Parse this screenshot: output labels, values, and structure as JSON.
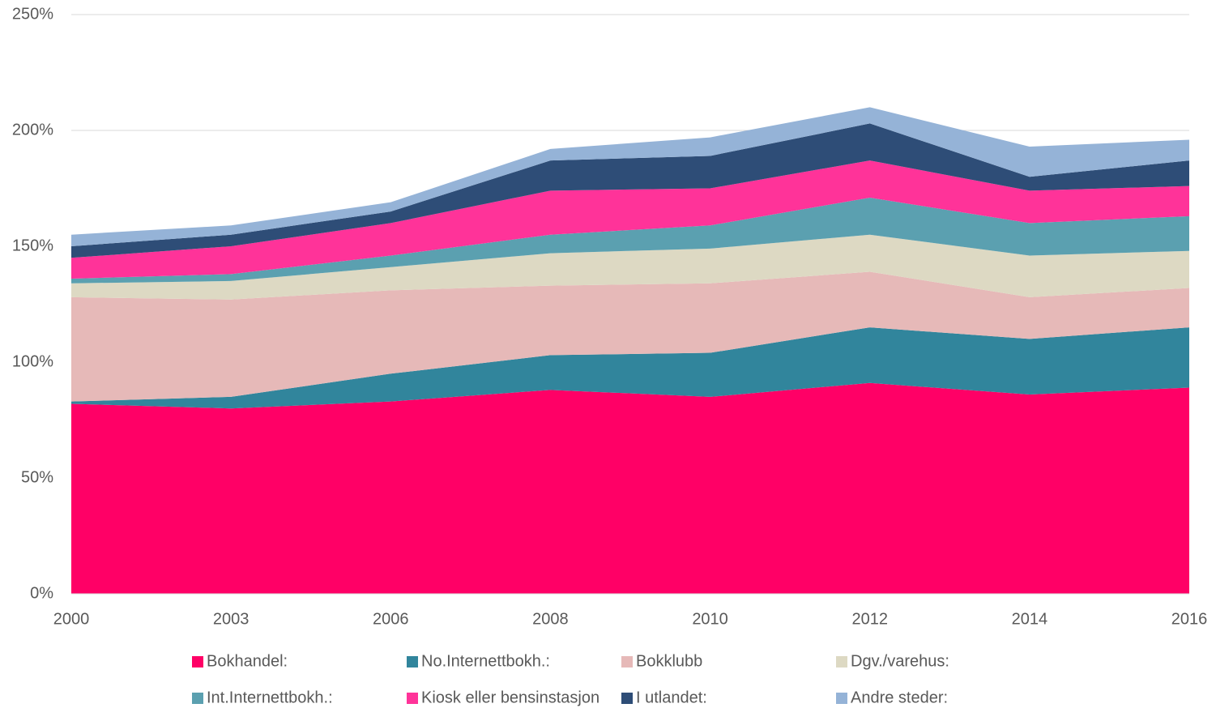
{
  "chart_data": {
    "type": "stacked_area",
    "categories": [
      "2000",
      "2003",
      "2006",
      "2008",
      "2010",
      "2012",
      "2014",
      "2016"
    ],
    "series": [
      {
        "name": "Bokhandel:",
        "color": "#ff0066",
        "values": [
          82,
          80,
          83,
          88,
          85,
          91,
          86,
          89
        ]
      },
      {
        "name": "No.Internettbokh.:",
        "color": "#31859c",
        "values": [
          1,
          5,
          12,
          15,
          19,
          24,
          24,
          26
        ]
      },
      {
        "name": "Bokklubb",
        "color": "#e6b9b8",
        "values": [
          45,
          42,
          36,
          30,
          30,
          24,
          18,
          17
        ]
      },
      {
        "name": "Dgv./varehus:",
        "color": "#ddd9c3",
        "values": [
          6,
          8,
          10,
          14,
          15,
          16,
          18,
          16
        ]
      },
      {
        "name": "Int.Internettbokh.:",
        "color": "#5ba0b0",
        "values": [
          2,
          3,
          5,
          8,
          10,
          16,
          14,
          15
        ]
      },
      {
        "name": "Kiosk eller bensinstasjon",
        "color": "#ff3399",
        "values": [
          9,
          12,
          14,
          19,
          16,
          16,
          14,
          13
        ]
      },
      {
        "name": "I utlandet:",
        "color": "#2e4d77",
        "values": [
          5,
          5,
          5,
          13,
          14,
          16,
          6,
          11
        ]
      },
      {
        "name": "Andre steder:",
        "color": "#95b3d7",
        "values": [
          5,
          4,
          4,
          5,
          8,
          7,
          13,
          9
        ]
      }
    ],
    "ylim": [
      0,
      250
    ],
    "yticks": [
      {
        "value": 0,
        "label": "0%"
      },
      {
        "value": 50,
        "label": "50%"
      },
      {
        "value": 100,
        "label": "100%"
      },
      {
        "value": 150,
        "label": "150%"
      },
      {
        "value": 200,
        "label": "200%"
      },
      {
        "value": 250,
        "label": "250%"
      }
    ],
    "grid": true,
    "legend": "bottom"
  }
}
